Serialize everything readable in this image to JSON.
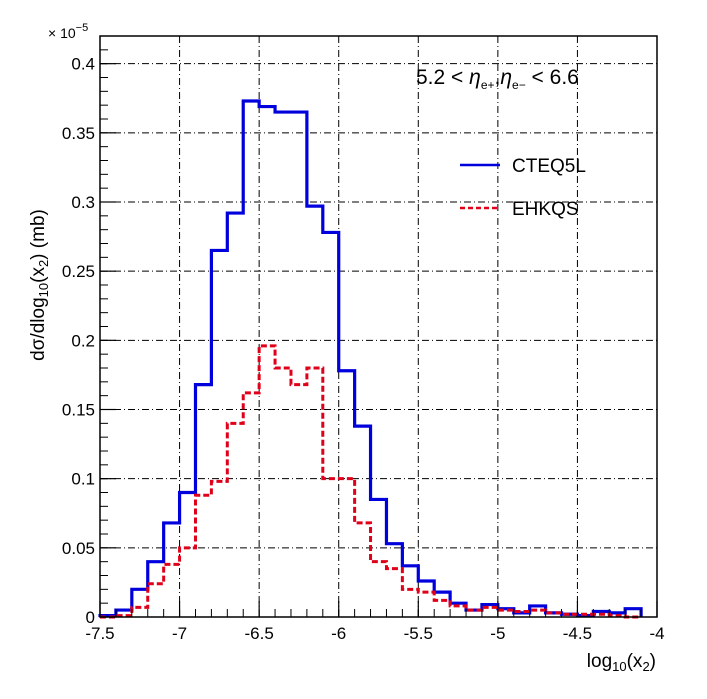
{
  "chart_data": {
    "type": "histogram",
    "title": "",
    "xlabel": "log10(x2)",
    "ylabel": "dσ/dlog10(x2) (mb)",
    "y_multiplier": "× 10^-5",
    "annotation": "5.2 < η_e+, η_e- < 6.6",
    "xlim": [
      -7.5,
      -4.0
    ],
    "ylim": [
      0,
      0.42
    ],
    "x_ticks": [
      -7.5,
      -7,
      -6.5,
      -6,
      -5.5,
      -5,
      -4.5,
      -4
    ],
    "x_tick_labels": [
      "-7.5",
      "-7",
      "-6.5",
      "-6",
      "-5.5",
      "-5",
      "-4.5",
      "-4"
    ],
    "y_ticks": [
      0,
      0.05,
      0.1,
      0.15,
      0.2,
      0.25,
      0.3,
      0.35,
      0.4
    ],
    "y_tick_labels": [
      "0",
      "0.05",
      "0.1",
      "0.15",
      "0.2",
      "0.25",
      "0.3",
      "0.35",
      "0.4"
    ],
    "grid": true,
    "bin_edges": [
      -7.5,
      -7.4,
      -7.3,
      -7.2,
      -7.1,
      -7.0,
      -6.9,
      -6.8,
      -6.7,
      -6.6,
      -6.5,
      -6.4,
      -6.3,
      -6.2,
      -6.1,
      -6.0,
      -5.9,
      -5.8,
      -5.7,
      -5.6,
      -5.5,
      -5.4,
      -5.3,
      -5.2,
      -5.1,
      -5.0,
      -4.9,
      -4.8,
      -4.7,
      -4.6,
      -4.5,
      -4.4,
      -4.3,
      -4.2,
      -4.1
    ],
    "series": [
      {
        "name": "CTEQ5L",
        "color": "#0000dd",
        "style": "solid",
        "values": [
          0.001,
          0.005,
          0.02,
          0.04,
          0.068,
          0.09,
          0.168,
          0.265,
          0.292,
          0.373,
          0.369,
          0.365,
          0.365,
          0.297,
          0.278,
          0.178,
          0.138,
          0.085,
          0.053,
          0.037,
          0.026,
          0.018,
          0.01,
          0.005,
          0.009,
          0.006,
          0.003,
          0.008,
          0.003,
          0.002,
          0.001,
          0.004,
          0.003,
          0.006
        ]
      },
      {
        "name": "EHKQS",
        "color": "#e0001a",
        "style": "dashed",
        "values": [
          0.0,
          0.001,
          0.007,
          0.024,
          0.038,
          0.05,
          0.088,
          0.098,
          0.14,
          0.162,
          0.196,
          0.18,
          0.168,
          0.18,
          0.1,
          0.1,
          0.068,
          0.04,
          0.035,
          0.02,
          0.018,
          0.012,
          0.008,
          0.005,
          0.007,
          0.005,
          0.004,
          0.005,
          0.003,
          0.002,
          0.002,
          0.002,
          0.001,
          0.0
        ]
      }
    ],
    "legend": [
      "CTEQ5L",
      "EHKQS"
    ],
    "legend_position": "top-right"
  }
}
